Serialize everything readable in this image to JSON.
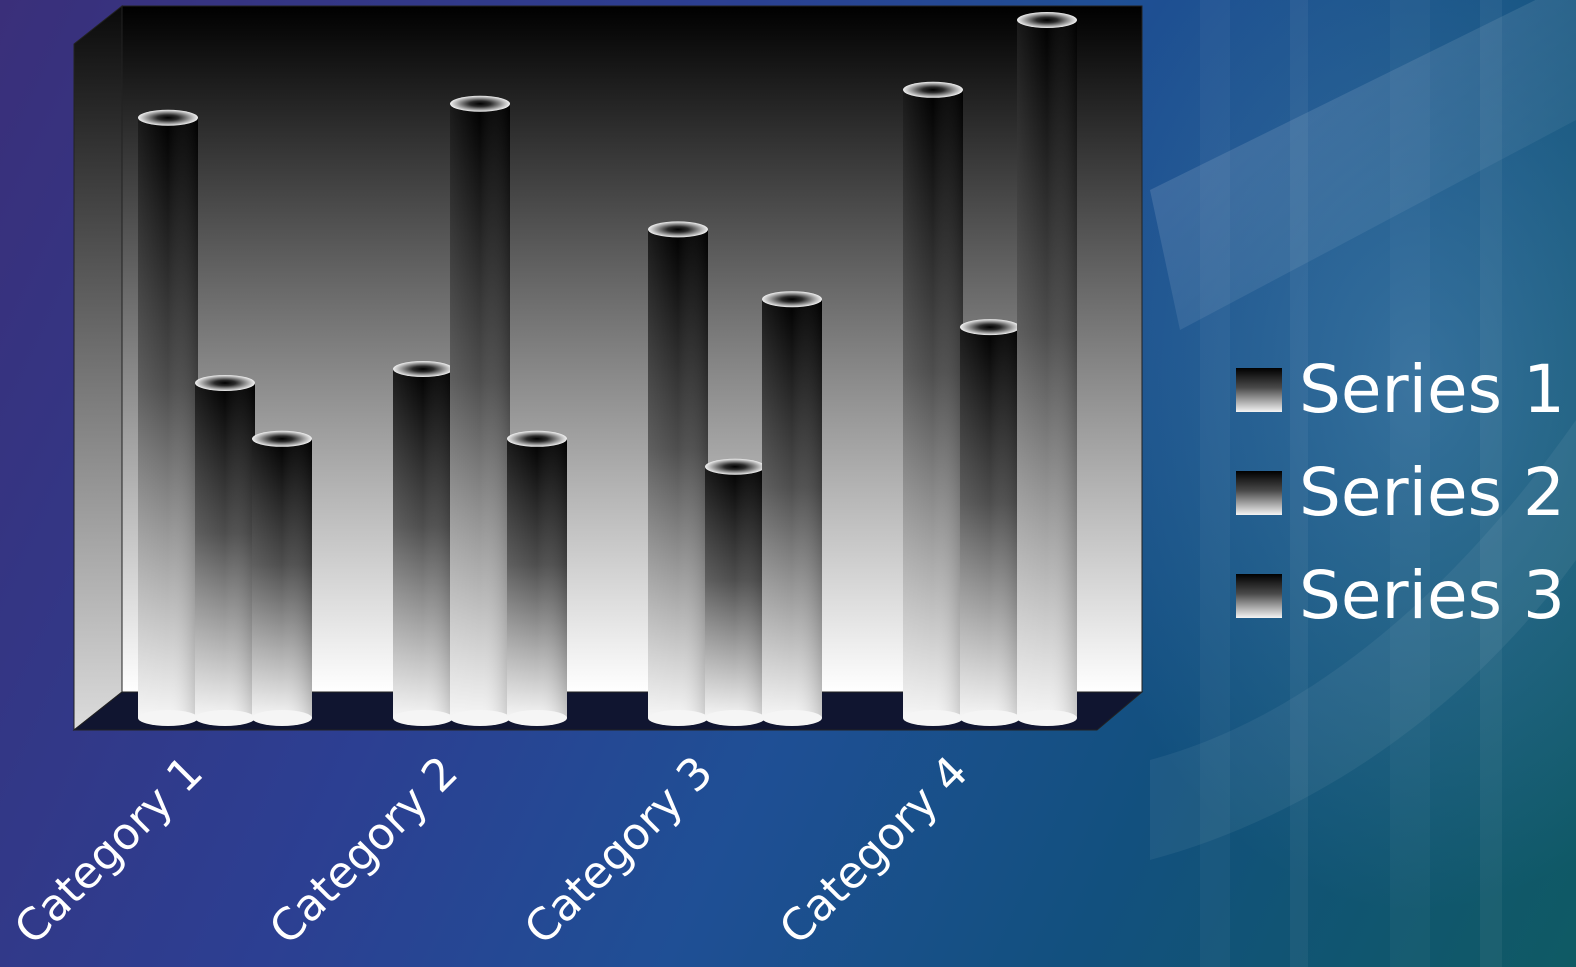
{
  "chart_data": {
    "type": "bar",
    "style": "3d-cylinder",
    "categories": [
      "Category 1",
      "Category 2",
      "Category 3",
      "Category 4"
    ],
    "series": [
      {
        "name": "Series 1",
        "values": [
          4.3,
          2.5,
          3.5,
          4.5
        ]
      },
      {
        "name": "Series 2",
        "values": [
          2.4,
          4.4,
          1.8,
          2.8
        ]
      },
      {
        "name": "Series 3",
        "values": [
          2.0,
          2.0,
          3.0,
          5.0
        ]
      }
    ],
    "ylim": [
      0,
      5
    ],
    "title": "",
    "xlabel": "",
    "ylabel": "",
    "grid": false,
    "legend": "right",
    "x_tick_rotation_deg": -45
  },
  "colors": {
    "bar_gradient_top": "#000000",
    "bar_gradient_bottom": "#f5f5f5",
    "plot_back_top": "#000000",
    "plot_back_bottom": "#ffffff",
    "floor": "#101530",
    "label_text": "#ffffff"
  }
}
